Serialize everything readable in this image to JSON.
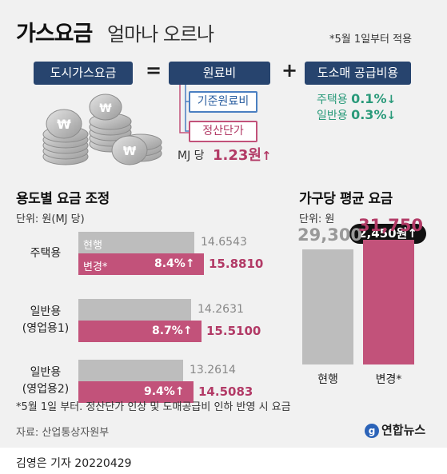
{
  "title": "가스요금",
  "subtitle": "얼마나 오르나",
  "date_note": "*5월 1일부터 적용",
  "formula": {
    "lhs": "도시가스요금",
    "eq": "=",
    "raw": "원료비",
    "plus": "+",
    "margin": "도소매 공급비용",
    "raw_base": "기준원료비",
    "raw_adjust": "정산단가",
    "mj_label": "MJ 당",
    "mj_value": "1.23원",
    "margin_home": "주택용",
    "margin_home_pct": "0.1%",
    "margin_general": "일반용",
    "margin_general_pct": "0.3%",
    "down_arrow": "↓",
    "up_arrow": "↑"
  },
  "section_left": {
    "title": "용도별 요금 조정",
    "unit": "단위: 원(MJ 당)"
  },
  "section_right": {
    "title": "가구당 평균 요금",
    "unit": "단위: 원",
    "badge": "2,450원"
  },
  "footnote": "*5월 1일 부터. 정산단가 인상 및 도매공급비 인하 반영 시 요금",
  "source": "자료: 산업통상자원부",
  "logo_text": "연합뉴스",
  "credit": "김영은 기자  20220429",
  "colors": {
    "navy": "#27446e",
    "magenta": "#c2527a",
    "gray_bar": "#bdbdbd",
    "teal": "#2a9a7a",
    "blue_box": "#4a7fc1"
  },
  "chart_data": [
    {
      "type": "bar",
      "orientation": "horizontal",
      "title": "용도별 요금 조정",
      "unit": "단위: 원(MJ 당)",
      "categories": [
        "주택용",
        "일반용\n(영업용1)",
        "일반용\n(영업용2)"
      ],
      "category_lines": [
        [
          "주택용"
        ],
        [
          "일반용",
          "(영업용1)"
        ],
        [
          "일반용",
          "(영업용2)"
        ]
      ],
      "series": [
        {
          "name": "현행",
          "values": [
            14.6543,
            14.2631,
            13.2614
          ],
          "labels": [
            "14.6543",
            "14.2631",
            "13.2614"
          ]
        },
        {
          "name": "변경*",
          "values": [
            15.881,
            15.51,
            14.5083
          ],
          "labels": [
            "15.8810",
            "15.5100",
            "14.5083"
          ]
        }
      ],
      "change_pct": [
        "8.4%",
        "8.7%",
        "9.4%"
      ]
    },
    {
      "type": "bar",
      "orientation": "vertical",
      "title": "가구당 평균 요금",
      "unit": "단위: 원",
      "categories": [
        "현행",
        "변경*"
      ],
      "values": [
        29300,
        31750
      ],
      "labels": [
        "29,300",
        "31,750"
      ],
      "difference": "2,450원"
    }
  ]
}
